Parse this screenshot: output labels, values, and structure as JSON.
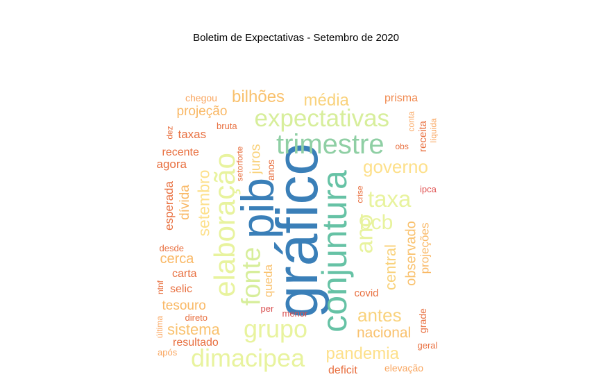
{
  "title": "Boletim de Expectativas - Setembro de 2020",
  "words": [
    {
      "text": "gráfico",
      "color": "#3a7fb8",
      "rotated": true
    },
    {
      "text": "pib",
      "color": "#3a7fb8",
      "rotated": true
    },
    {
      "text": "conjuntura",
      "color": "#66c2a5",
      "rotated": true
    },
    {
      "text": "trimestre",
      "color": "#8fcfa4",
      "rotated": false
    },
    {
      "text": "expectativas",
      "color": "#d7ee9b",
      "rotated": false
    },
    {
      "text": "elaboração",
      "color": "#e8f39e",
      "rotated": true
    },
    {
      "text": "fonte",
      "color": "#d7ee9b",
      "rotated": true
    },
    {
      "text": "grupo",
      "color": "#e8f39e",
      "rotated": false
    },
    {
      "text": "dimacipea",
      "color": "#e8f39e",
      "rotated": false
    },
    {
      "text": "ano",
      "color": "#e8f39e",
      "rotated": true
    },
    {
      "text": "taxa",
      "color": "#e8f39e",
      "rotated": false
    },
    {
      "text": "bcb",
      "color": "#e8f39e",
      "rotated": false
    },
    {
      "text": "governo",
      "color": "#fde08b",
      "rotated": false
    },
    {
      "text": "média",
      "color": "#f9d27c",
      "rotated": false
    },
    {
      "text": "bilhões",
      "color": "#f9c16d",
      "rotated": false
    },
    {
      "text": "pandemia",
      "color": "#fde08b",
      "rotated": false
    },
    {
      "text": "antes",
      "color": "#f9d27c",
      "rotated": false
    },
    {
      "text": "nacional",
      "color": "#f9c16d",
      "rotated": false
    },
    {
      "text": "central",
      "color": "#f9d27c",
      "rotated": true
    },
    {
      "text": "observado",
      "color": "#f9c16d",
      "rotated": true
    },
    {
      "text": "setembro",
      "color": "#fde08b",
      "rotated": true
    },
    {
      "text": "juros",
      "color": "#f9d27c",
      "rotated": true
    },
    {
      "text": "sistema",
      "color": "#f9c16d",
      "rotated": false
    },
    {
      "text": "projeção",
      "color": "#f9b865",
      "rotated": false
    },
    {
      "text": "cerca",
      "color": "#f9b865",
      "rotated": false
    },
    {
      "text": "dívida",
      "color": "#f9b865",
      "rotated": true
    },
    {
      "text": "tesouro",
      "color": "#f9b865",
      "rotated": false
    },
    {
      "text": "queda",
      "color": "#f9c16d",
      "rotated": true
    },
    {
      "text": "projeções",
      "color": "#f9b865",
      "rotated": true
    },
    {
      "text": "prisma",
      "color": "#f08a50",
      "rotated": false
    },
    {
      "text": "taxas",
      "color": "#e86f3f",
      "rotated": false
    },
    {
      "text": "recente",
      "color": "#e86f3f",
      "rotated": false
    },
    {
      "text": "agora",
      "color": "#e86f3f",
      "rotated": false
    },
    {
      "text": "esperada",
      "color": "#e86f3f",
      "rotated": true
    },
    {
      "text": "carta",
      "color": "#e86f3f",
      "rotated": false
    },
    {
      "text": "selic",
      "color": "#e86f3f",
      "rotated": false
    },
    {
      "text": "resultado",
      "color": "#e86f3f",
      "rotated": false
    },
    {
      "text": "covid",
      "color": "#e86f3f",
      "rotated": false
    },
    {
      "text": "deficit",
      "color": "#e86f3f",
      "rotated": false
    },
    {
      "text": "receita",
      "color": "#e86f3f",
      "rotated": true
    },
    {
      "text": "grade",
      "color": "#e86f3f",
      "rotated": true
    },
    {
      "text": "anos",
      "color": "#e86f3f",
      "rotated": true
    },
    {
      "text": "chegou",
      "color": "#f9a55e",
      "rotated": false
    },
    {
      "text": "bruta",
      "color": "#e86f3f",
      "rotated": false
    },
    {
      "text": "dez",
      "color": "#e86f3f",
      "rotated": true
    },
    {
      "text": "setorforte",
      "color": "#e86f3f",
      "rotated": true
    },
    {
      "text": "conta",
      "color": "#f9a55e",
      "rotated": true
    },
    {
      "text": "líquida",
      "color": "#f9a55e",
      "rotated": true
    },
    {
      "text": "obs",
      "color": "#e86f3f",
      "rotated": false
    },
    {
      "text": "crise",
      "color": "#e86f3f",
      "rotated": true
    },
    {
      "text": "ipca",
      "color": "#e05050",
      "rotated": false
    },
    {
      "text": "desde",
      "color": "#e86f3f",
      "rotated": false
    },
    {
      "text": "ntnf",
      "color": "#e86f3f",
      "rotated": true
    },
    {
      "text": "per",
      "color": "#d94f4f",
      "rotated": false
    },
    {
      "text": "menor",
      "color": "#d94f4f",
      "rotated": false
    },
    {
      "text": "direto",
      "color": "#e86f3f",
      "rotated": false
    },
    {
      "text": "última",
      "color": "#f9a55e",
      "rotated": true
    },
    {
      "text": "após",
      "color": "#f9a55e",
      "rotated": false
    },
    {
      "text": "geral",
      "color": "#e86f3f",
      "rotated": false
    },
    {
      "text": "elevação",
      "color": "#f9a55e",
      "rotated": false
    }
  ]
}
